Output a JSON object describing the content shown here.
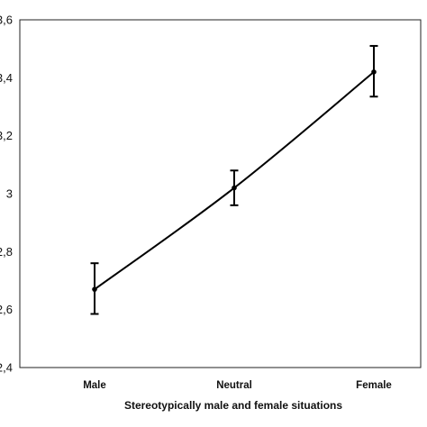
{
  "chart_data": {
    "type": "line",
    "categories": [
      "Male",
      "Neutral",
      "Female"
    ],
    "series": [
      {
        "values": [
          2.67,
          3.02,
          3.42
        ],
        "error_low": [
          2.585,
          2.96,
          3.335
        ],
        "error_high": [
          2.76,
          3.08,
          3.51
        ]
      }
    ],
    "ylim": [
      2.4,
      3.6
    ],
    "yticks": [
      "2,4",
      "2,6",
      "2,8",
      "3",
      "3,2",
      "3,4",
      "3,6"
    ],
    "ytick_values": [
      2.4,
      2.6,
      2.8,
      3.0,
      3.2,
      3.4,
      3.6
    ],
    "xlabel": "Stereotypically male and female situations",
    "ylabel": "",
    "title": "",
    "grid": false,
    "legend": "none",
    "line_color": "#000000"
  }
}
